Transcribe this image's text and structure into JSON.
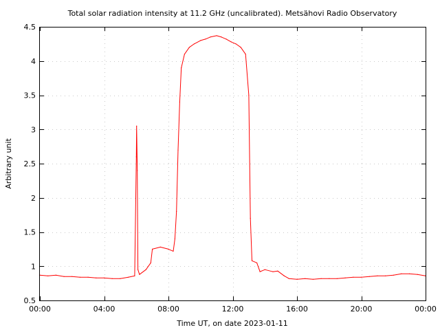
{
  "chart_data": {
    "type": "line",
    "title": "Total solar radiation intensity at 11.2 GHz (uncalibrated). Metsähovi Radio Observatory",
    "xlabel": "Time UT, on date 2023-01-11",
    "ylabel": "Arbitrary unit",
    "xlim": [
      0,
      24
    ],
    "ylim": [
      0.5,
      4.5
    ],
    "x_ticks": [
      0,
      4,
      8,
      12,
      16,
      20,
      24
    ],
    "x_tick_labels": [
      "00:00",
      "04:00",
      "08:00",
      "12:00",
      "16:00",
      "20:00",
      "00:00"
    ],
    "y_ticks": [
      0.5,
      1,
      1.5,
      2,
      2.5,
      3,
      3.5,
      4,
      4.5
    ],
    "y_tick_labels": [
      "0.5",
      "1",
      "1.5",
      "2",
      "2.5",
      "3",
      "3.5",
      "4",
      "4.5"
    ],
    "grid": true,
    "series": [
      {
        "color": "#ff0000",
        "points": [
          [
            0.0,
            0.87
          ],
          [
            0.5,
            0.86
          ],
          [
            1.0,
            0.87
          ],
          [
            1.5,
            0.85
          ],
          [
            2.0,
            0.85
          ],
          [
            2.5,
            0.84
          ],
          [
            3.0,
            0.84
          ],
          [
            3.5,
            0.83
          ],
          [
            4.0,
            0.83
          ],
          [
            4.5,
            0.82
          ],
          [
            5.0,
            0.82
          ],
          [
            5.5,
            0.84
          ],
          [
            5.9,
            0.86
          ],
          [
            6.0,
            2.6
          ],
          [
            6.02,
            3.05
          ],
          [
            6.06,
            2.4
          ],
          [
            6.1,
            0.95
          ],
          [
            6.2,
            0.88
          ],
          [
            6.6,
            0.95
          ],
          [
            6.9,
            1.05
          ],
          [
            7.0,
            1.25
          ],
          [
            7.5,
            1.28
          ],
          [
            8.0,
            1.25
          ],
          [
            8.3,
            1.22
          ],
          [
            8.4,
            1.4
          ],
          [
            8.5,
            1.8
          ],
          [
            8.6,
            2.7
          ],
          [
            8.7,
            3.4
          ],
          [
            8.8,
            3.9
          ],
          [
            9.0,
            4.1
          ],
          [
            9.3,
            4.2
          ],
          [
            9.6,
            4.25
          ],
          [
            10.0,
            4.3
          ],
          [
            10.3,
            4.32
          ],
          [
            10.6,
            4.35
          ],
          [
            11.0,
            4.37
          ],
          [
            11.3,
            4.35
          ],
          [
            11.6,
            4.32
          ],
          [
            11.9,
            4.28
          ],
          [
            12.2,
            4.25
          ],
          [
            12.5,
            4.2
          ],
          [
            12.8,
            4.1
          ],
          [
            13.0,
            3.5
          ],
          [
            13.1,
            1.7
          ],
          [
            13.2,
            1.08
          ],
          [
            13.5,
            1.05
          ],
          [
            13.7,
            0.92
          ],
          [
            14.0,
            0.95
          ],
          [
            14.5,
            0.92
          ],
          [
            14.8,
            0.93
          ],
          [
            15.2,
            0.86
          ],
          [
            15.5,
            0.82
          ],
          [
            16.0,
            0.81
          ],
          [
            16.5,
            0.82
          ],
          [
            17.0,
            0.81
          ],
          [
            17.5,
            0.82
          ],
          [
            18.0,
            0.82
          ],
          [
            18.5,
            0.82
          ],
          [
            19.0,
            0.83
          ],
          [
            19.5,
            0.84
          ],
          [
            20.0,
            0.84
          ],
          [
            20.5,
            0.85
          ],
          [
            21.0,
            0.86
          ],
          [
            21.5,
            0.86
          ],
          [
            22.0,
            0.87
          ],
          [
            22.5,
            0.89
          ],
          [
            23.0,
            0.89
          ],
          [
            23.5,
            0.88
          ],
          [
            24.0,
            0.86
          ]
        ]
      }
    ]
  }
}
